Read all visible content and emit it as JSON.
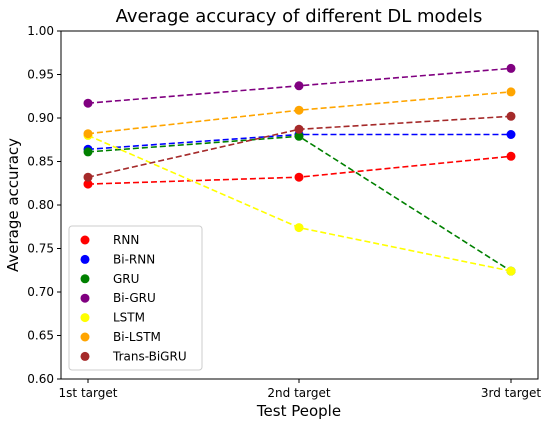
{
  "chart_data": {
    "type": "line",
    "title": "Average accuracy of different DL models",
    "xlabel": "Test People",
    "ylabel": "Average accuracy",
    "categories": [
      "1st target",
      "2nd target",
      "3rd target"
    ],
    "ylim": [
      0.6,
      1.0
    ],
    "yticks": [
      "0.60",
      "0.65",
      "0.70",
      "0.75",
      "0.80",
      "0.85",
      "0.90",
      "0.95",
      "1.00"
    ],
    "grid": false,
    "legend_position": "lower-left",
    "line_style": "dashed",
    "series": [
      {
        "name": "RNN",
        "color": "#ff0000",
        "values": [
          0.824,
          0.832,
          0.856
        ]
      },
      {
        "name": "Bi-RNN",
        "color": "#0000ff",
        "values": [
          0.864,
          0.881,
          0.881
        ]
      },
      {
        "name": "GRU",
        "color": "#008000",
        "values": [
          0.861,
          0.879,
          0.724
        ]
      },
      {
        "name": "Bi-GRU",
        "color": "#800080",
        "values": [
          0.917,
          0.937,
          0.957
        ]
      },
      {
        "name": "LSTM",
        "color": "#ffff00",
        "values": [
          0.88,
          0.774,
          0.724
        ]
      },
      {
        "name": "Bi-LSTM",
        "color": "#ffa500",
        "values": [
          0.882,
          0.909,
          0.93
        ]
      },
      {
        "name": "Trans-BiGRU",
        "color": "#a52a2a",
        "values": [
          0.832,
          0.887,
          0.902
        ]
      }
    ]
  }
}
